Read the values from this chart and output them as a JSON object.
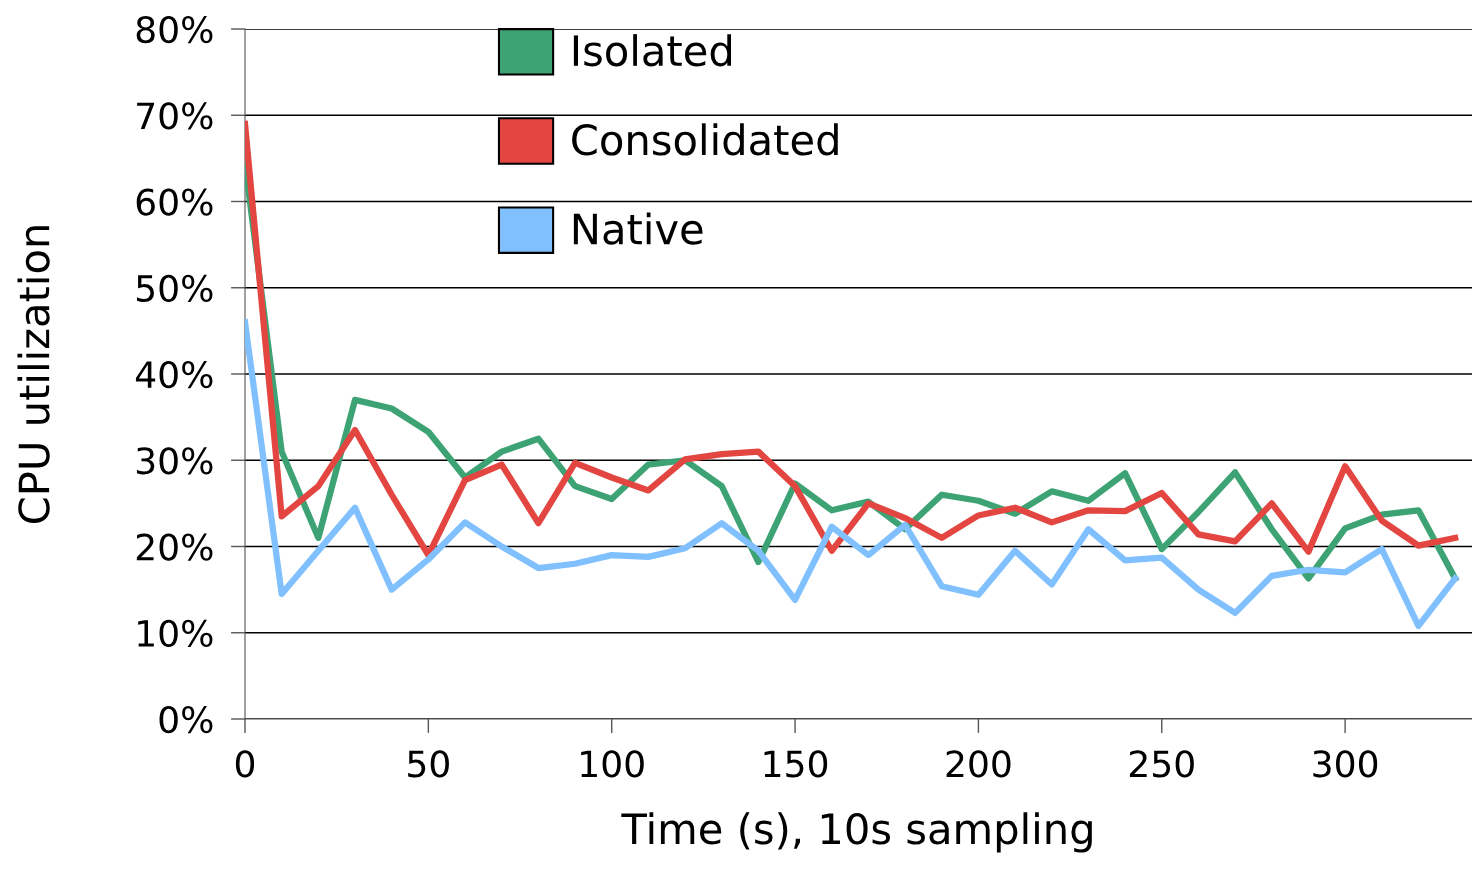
{
  "chart_data": {
    "type": "line",
    "xlabel": "Time (s), 10s sampling",
    "ylabel": "CPU utilization",
    "x": [
      0,
      10,
      20,
      30,
      40,
      50,
      60,
      70,
      80,
      90,
      100,
      110,
      120,
      130,
      140,
      150,
      160,
      170,
      180,
      190,
      200,
      210,
      220,
      230,
      240,
      250,
      260,
      270,
      280,
      290,
      300,
      310,
      320,
      330
    ],
    "series": [
      {
        "name": "Isolated",
        "color": "#3da374",
        "values": [
          64.5,
          31,
          21,
          37,
          36,
          33.3,
          28,
          31,
          32.5,
          27,
          25.5,
          29.5,
          30,
          27,
          18.2,
          27.3,
          24.2,
          25.2,
          22,
          26,
          25.3,
          23.8,
          26.4,
          25.3,
          28.5,
          19.7,
          24,
          28.6,
          22,
          16.3,
          22.1,
          23.7,
          24.2,
          16.3
        ]
      },
      {
        "name": "Consolidated",
        "color": "#e34641",
        "values": [
          69,
          23.5,
          27,
          33.5,
          26,
          19,
          27.7,
          29.5,
          22.7,
          29.7,
          28,
          26.5,
          30.1,
          30.7,
          31,
          27,
          19.5,
          25,
          23.3,
          21,
          23.6,
          24.5,
          22.8,
          24.2,
          24.1,
          26.2,
          21.4,
          20.6,
          25,
          19.4,
          29.3,
          23,
          20.1,
          21
        ]
      },
      {
        "name": "Native",
        "color": "#80c0ff",
        "values": [
          46,
          14.5,
          19.5,
          24.5,
          15,
          18.5,
          22.8,
          20,
          17.5,
          18,
          19,
          18.8,
          19.8,
          22.7,
          19.5,
          13.8,
          22.3,
          19,
          22.5,
          15.4,
          14.4,
          19.5,
          15.6,
          22,
          18.4,
          18.7,
          15,
          12.3,
          16.6,
          17.3,
          17,
          19.7,
          10.8,
          16.3
        ]
      }
    ],
    "xlim": [
      0,
      334.6
    ],
    "xticks": [
      0,
      50,
      100,
      150,
      200,
      250,
      300
    ],
    "ylim": [
      0,
      80
    ],
    "yticks": [
      {
        "value": 0,
        "label": "0%"
      },
      {
        "value": 10,
        "label": "10%"
      },
      {
        "value": 20,
        "label": "20%"
      },
      {
        "value": 30,
        "label": "30%"
      },
      {
        "value": 40,
        "label": "40%"
      },
      {
        "value": 50,
        "label": "50%"
      },
      {
        "value": 60,
        "label": "60%"
      },
      {
        "value": 70,
        "label": "70%"
      },
      {
        "value": 80,
        "label": "80%"
      }
    ],
    "grid": "y",
    "legend": "top",
    "marker": "none",
    "line_style": "solid"
  }
}
